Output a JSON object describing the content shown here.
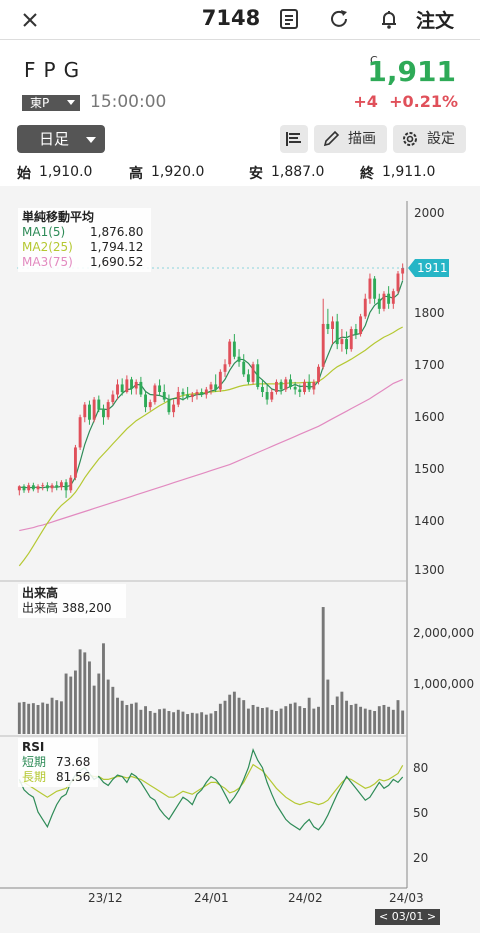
{
  "header": {
    "stock_code": "7148",
    "order_label": "注文",
    "icons": [
      "close-icon",
      "document-icon",
      "refresh-icon",
      "bell-icon"
    ]
  },
  "quote": {
    "name": "FPG",
    "market": "東P",
    "time": "15:00:00",
    "flag": "C",
    "price": "1,911",
    "change": "+4",
    "change_pct": "+0.21%",
    "colors": {
      "up": "#e0505a",
      "down": "#2eaa57",
      "price": "#2eaa57"
    }
  },
  "toolbar": {
    "period": "日足",
    "draw_label": "描画",
    "settings_label": "設定"
  },
  "ohlc": {
    "open_label": "始",
    "open": "1,910.0",
    "high_label": "高",
    "high": "1,920.0",
    "low_label": "安",
    "low": "1,887.0",
    "close_label": "終",
    "close": "1,911.0"
  },
  "price_panel": {
    "title": "単純移動平均",
    "ma": [
      {
        "name": "MA1(5)",
        "value": "1,876.80",
        "color": "#2e8b57"
      },
      {
        "name": "MA2(25)",
        "value": "1,794.12",
        "color": "#b5c832"
      },
      {
        "name": "MA3(75)",
        "value": "1,690.52",
        "color": "#e28ac0"
      }
    ],
    "y_ticks": [
      "2000",
      "1800",
      "1700",
      "1600",
      "1500",
      "1400",
      "1300"
    ],
    "last_price_tag": "1911"
  },
  "volume_panel": {
    "title": "出来高",
    "label": "出来高",
    "value": "388,200",
    "y_ticks": [
      "2,000,000",
      "1,000,000"
    ]
  },
  "rsi_panel": {
    "title": "RSI",
    "short_label": "短期",
    "short_value": "73.68",
    "long_label": "長期",
    "long_value": "81.56",
    "y_ticks": [
      "80",
      "50",
      "20"
    ]
  },
  "x_axis": {
    "ticks": [
      "23/12",
      "24/01",
      "24/02",
      "24/03"
    ],
    "cursor_date": "< 03/01 >"
  },
  "chart_data": {
    "type": "candlestick",
    "note_fields": "ohlc values in price units",
    "candles": [
      [
        1470,
        1480,
        1460,
        1478
      ],
      [
        1478,
        1482,
        1465,
        1470
      ],
      [
        1470,
        1485,
        1465,
        1480
      ],
      [
        1480,
        1485,
        1468,
        1472
      ],
      [
        1472,
        1482,
        1465,
        1478
      ],
      [
        1478,
        1485,
        1470,
        1480
      ],
      [
        1480,
        1486,
        1468,
        1474
      ],
      [
        1474,
        1484,
        1466,
        1480
      ],
      [
        1480,
        1488,
        1470,
        1476
      ],
      [
        1476,
        1490,
        1470,
        1486
      ],
      [
        1486,
        1492,
        1455,
        1470
      ],
      [
        1470,
        1500,
        1465,
        1495
      ],
      [
        1495,
        1560,
        1490,
        1555
      ],
      [
        1555,
        1620,
        1550,
        1615
      ],
      [
        1615,
        1645,
        1605,
        1640
      ],
      [
        1640,
        1648,
        1600,
        1610
      ],
      [
        1610,
        1655,
        1605,
        1650
      ],
      [
        1650,
        1658,
        1625,
        1630
      ],
      [
        1630,
        1640,
        1600,
        1615
      ],
      [
        1615,
        1650,
        1610,
        1645
      ],
      [
        1645,
        1668,
        1640,
        1660
      ],
      [
        1660,
        1690,
        1650,
        1680
      ],
      [
        1680,
        1692,
        1658,
        1665
      ],
      [
        1665,
        1698,
        1662,
        1690
      ],
      [
        1690,
        1695,
        1660,
        1672
      ],
      [
        1672,
        1690,
        1660,
        1685
      ],
      [
        1685,
        1695,
        1655,
        1660
      ],
      [
        1660,
        1665,
        1625,
        1635
      ],
      [
        1635,
        1650,
        1628,
        1645
      ],
      [
        1645,
        1682,
        1640,
        1678
      ],
      [
        1678,
        1690,
        1658,
        1665
      ],
      [
        1665,
        1680,
        1645,
        1650
      ],
      [
        1650,
        1660,
        1620,
        1625
      ],
      [
        1625,
        1650,
        1615,
        1640
      ],
      [
        1640,
        1675,
        1635,
        1665
      ],
      [
        1665,
        1672,
        1648,
        1660
      ],
      [
        1660,
        1675,
        1650,
        1655
      ],
      [
        1655,
        1665,
        1645,
        1660
      ],
      [
        1660,
        1670,
        1650,
        1665
      ],
      [
        1665,
        1672,
        1655,
        1660
      ],
      [
        1660,
        1675,
        1652,
        1670
      ],
      [
        1670,
        1685,
        1660,
        1680
      ],
      [
        1680,
        1700,
        1665,
        1670
      ],
      [
        1670,
        1710,
        1665,
        1705
      ],
      [
        1705,
        1730,
        1695,
        1720
      ],
      [
        1720,
        1770,
        1715,
        1765
      ],
      [
        1765,
        1780,
        1730,
        1735
      ],
      [
        1735,
        1750,
        1715,
        1725
      ],
      [
        1725,
        1740,
        1695,
        1700
      ],
      [
        1700,
        1710,
        1680,
        1685
      ],
      [
        1685,
        1725,
        1680,
        1720
      ],
      [
        1720,
        1730,
        1670,
        1675
      ],
      [
        1675,
        1690,
        1655,
        1665
      ],
      [
        1665,
        1680,
        1640,
        1650
      ],
      [
        1650,
        1670,
        1645,
        1665
      ],
      [
        1665,
        1690,
        1660,
        1685
      ],
      [
        1685,
        1690,
        1660,
        1670
      ],
      [
        1670,
        1695,
        1665,
        1690
      ],
      [
        1690,
        1700,
        1670,
        1675
      ],
      [
        1675,
        1685,
        1660,
        1670
      ],
      [
        1670,
        1680,
        1655,
        1665
      ],
      [
        1665,
        1690,
        1660,
        1685
      ],
      [
        1685,
        1700,
        1665,
        1670
      ],
      [
        1670,
        1690,
        1660,
        1685
      ],
      [
        1685,
        1720,
        1680,
        1715
      ],
      [
        1715,
        1850,
        1710,
        1800
      ],
      [
        1800,
        1830,
        1780,
        1790
      ],
      [
        1790,
        1815,
        1760,
        1805
      ],
      [
        1805,
        1820,
        1750,
        1760
      ],
      [
        1760,
        1790,
        1745,
        1770
      ],
      [
        1770,
        1785,
        1740,
        1750
      ],
      [
        1750,
        1795,
        1745,
        1790
      ],
      [
        1790,
        1800,
        1770,
        1780
      ],
      [
        1780,
        1820,
        1775,
        1815
      ],
      [
        1815,
        1860,
        1810,
        1850
      ],
      [
        1850,
        1900,
        1840,
        1890
      ],
      [
        1890,
        1895,
        1840,
        1850
      ],
      [
        1850,
        1860,
        1820,
        1830
      ],
      [
        1830,
        1865,
        1825,
        1860
      ],
      [
        1860,
        1875,
        1830,
        1840
      ],
      [
        1840,
        1870,
        1830,
        1865
      ],
      [
        1865,
        1905,
        1860,
        1900
      ],
      [
        1900,
        1920,
        1887,
        1911
      ]
    ],
    "ma1": [
      1476,
      1476,
      1475,
      1476,
      1476,
      1475,
      1477,
      1477,
      1476,
      1478,
      1477,
      1480,
      1496,
      1527,
      1561,
      1587,
      1608,
      1631,
      1631,
      1630,
      1638,
      1652,
      1662,
      1670,
      1671,
      1680,
      1679,
      1666,
      1660,
      1659,
      1658,
      1655,
      1650,
      1652,
      1653,
      1650,
      1655,
      1657,
      1660,
      1660,
      1663,
      1667,
      1669,
      1678,
      1690,
      1708,
      1722,
      1730,
      1729,
      1722,
      1710,
      1697,
      1689,
      1680,
      1671,
      1668,
      1667,
      1672,
      1676,
      1680,
      1676,
      1677,
      1675,
      1676,
      1687,
      1715,
      1738,
      1760,
      1769,
      1774,
      1773,
      1777,
      1779,
      1781,
      1797,
      1823,
      1837,
      1844,
      1855,
      1854,
      1851,
      1859,
      1886
    ],
    "ma2": [
      1320,
      1332,
      1345,
      1360,
      1375,
      1390,
      1405,
      1418,
      1430,
      1440,
      1448,
      1456,
      1466,
      1480,
      1495,
      1508,
      1520,
      1532,
      1542,
      1552,
      1562,
      1572,
      1582,
      1592,
      1600,
      1608,
      1614,
      1620,
      1626,
      1632,
      1638,
      1643,
      1648,
      1652,
      1655,
      1658,
      1660,
      1661,
      1662,
      1663,
      1664,
      1665,
      1666,
      1667,
      1668,
      1670,
      1673,
      1676,
      1678,
      1679,
      1680,
      1681,
      1681,
      1681,
      1681,
      1681,
      1681,
      1682,
      1683,
      1683,
      1683,
      1684,
      1684,
      1684,
      1686,
      1692,
      1700,
      1708,
      1715,
      1720,
      1725,
      1730,
      1736,
      1742,
      1748,
      1755,
      1762,
      1768,
      1774,
      1778,
      1783,
      1789,
      1794
    ],
    "ma3": [
      1390,
      1392,
      1394,
      1396,
      1399,
      1401,
      1404,
      1407,
      1410,
      1413,
      1416,
      1419,
      1422,
      1425,
      1428,
      1431,
      1434,
      1437,
      1440,
      1443,
      1446,
      1449,
      1452,
      1455,
      1458,
      1461,
      1464,
      1467,
      1470,
      1473,
      1476,
      1479,
      1482,
      1485,
      1488,
      1491,
      1494,
      1497,
      1500,
      1503,
      1506,
      1509,
      1512,
      1515,
      1518,
      1521,
      1525,
      1529,
      1533,
      1537,
      1541,
      1545,
      1549,
      1553,
      1557,
      1561,
      1565,
      1569,
      1573,
      1577,
      1581,
      1585,
      1589,
      1593,
      1597,
      1602,
      1607,
      1612,
      1617,
      1622,
      1627,
      1632,
      1637,
      1642,
      1647,
      1652,
      1658,
      1664,
      1670,
      1676,
      1682,
      1686,
      1690
    ],
    "volume": [
      520000,
      530000,
      500000,
      510000,
      480000,
      520000,
      500000,
      600000,
      560000,
      540000,
      1000000,
      950000,
      1050000,
      1400000,
      1350000,
      1200000,
      800000,
      1000000,
      1500000,
      900000,
      780000,
      600000,
      550000,
      480000,
      500000,
      520000,
      400000,
      460000,
      380000,
      350000,
      410000,
      420000,
      380000,
      360000,
      400000,
      370000,
      330000,
      350000,
      340000,
      360000,
      320000,
      340000,
      380000,
      500000,
      550000,
      650000,
      700000,
      600000,
      560000,
      420000,
      480000,
      450000,
      430000,
      440000,
      400000,
      380000,
      420000,
      460000,
      500000,
      520000,
      460000,
      430000,
      600000,
      420000,
      450000,
      2100000,
      900000,
      480000,
      620000,
      700000,
      550000,
      480000,
      500000,
      450000,
      420000,
      400000,
      380000,
      460000,
      480000,
      450000,
      400000,
      560000,
      388200
    ],
    "rsi_short": [
      72,
      65,
      62,
      60,
      50,
      45,
      40,
      48,
      55,
      60,
      62,
      70,
      75,
      78,
      80,
      76,
      72,
      74,
      70,
      68,
      72,
      75,
      74,
      70,
      76,
      74,
      70,
      65,
      60,
      58,
      52,
      48,
      45,
      50,
      55,
      60,
      58,
      55,
      62,
      65,
      70,
      74,
      72,
      68,
      62,
      56,
      60,
      65,
      72,
      80,
      92,
      85,
      80,
      70,
      62,
      55,
      50,
      45,
      42,
      40,
      38,
      42,
      45,
      40,
      38,
      42,
      48,
      55,
      62,
      68,
      74,
      70,
      66,
      62,
      58,
      60,
      65,
      70,
      66,
      68,
      72,
      70,
      73.68
    ],
    "rsi_long": [
      70,
      70,
      68,
      66,
      64,
      62,
      60,
      62,
      64,
      65,
      66,
      70,
      72,
      74,
      76,
      75,
      74,
      74,
      72,
      72,
      73,
      74,
      74,
      73,
      74,
      73,
      72,
      70,
      68,
      66,
      64,
      62,
      60,
      60,
      62,
      64,
      63,
      62,
      64,
      66,
      68,
      70,
      70,
      68,
      66,
      63,
      64,
      66,
      70,
      76,
      82,
      80,
      78,
      74,
      70,
      66,
      63,
      60,
      58,
      56,
      55,
      56,
      57,
      56,
      55,
      56,
      58,
      62,
      66,
      70,
      73,
      72,
      70,
      68,
      66,
      67,
      69,
      72,
      71,
      72,
      74,
      76,
      81.56
    ],
    "x_ticks": [
      "23/12",
      "24/01",
      "24/02",
      "24/03"
    ],
    "price_ylim": [
      1300,
      2030
    ],
    "volume_ylim": [
      0,
      2200000
    ],
    "rsi_ylim": [
      0,
      100
    ]
  }
}
